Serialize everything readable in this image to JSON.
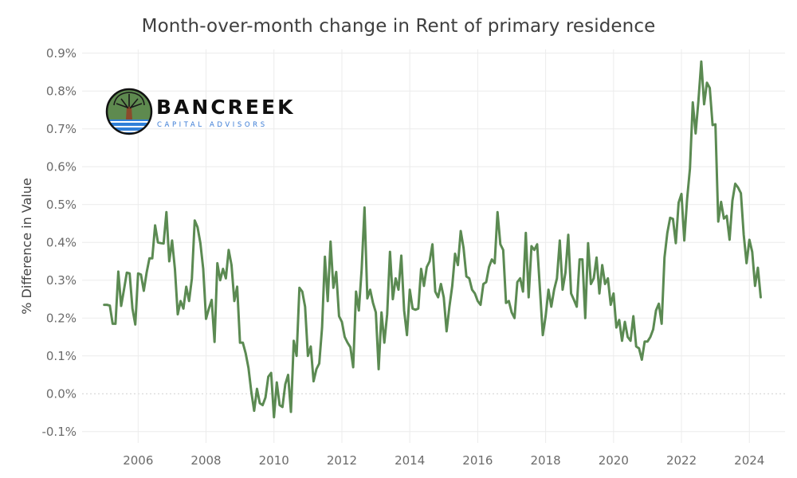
{
  "title": "Month-over-month change in Rent of primary residence",
  "logo": {
    "brand": "BANCREEK",
    "subtitle": "CAPITAL ADVISORS"
  },
  "colors": {
    "line": "#5b8a52",
    "grid": "#ececec",
    "zero_line": "#cfcfcf",
    "axis_text": "#6b6b6b"
  },
  "chart_data": {
    "type": "line",
    "title": "Month-over-month change in Rent of primary residence",
    "xlabel": "",
    "ylabel": "% Difference in Value",
    "xlim": [
      2004.35,
      2025.05
    ],
    "ylim": [
      -0.13,
      0.91
    ],
    "x_ticks": [
      2006,
      2008,
      2010,
      2012,
      2014,
      2016,
      2018,
      2020,
      2022,
      2024
    ],
    "y_ticks": [
      -0.1,
      0.0,
      0.1,
      0.2,
      0.3,
      0.4,
      0.5,
      0.6,
      0.7,
      0.8,
      0.9
    ],
    "y_tick_labels": [
      "-0.1%",
      "0.0%",
      "0.1%",
      "0.2%",
      "0.3%",
      "0.4%",
      "0.5%",
      "0.6%",
      "0.7%",
      "0.8%",
      "0.9%"
    ],
    "grid": true,
    "series": [
      {
        "x_start": 2005.0,
        "x_step": 0.083333,
        "values": [
          0.235,
          0.235,
          0.233,
          0.185,
          0.185,
          0.323,
          0.232,
          0.275,
          0.32,
          0.318,
          0.225,
          0.183,
          0.318,
          0.315,
          0.272,
          0.32,
          0.358,
          0.358,
          0.445,
          0.4,
          0.398,
          0.397,
          0.48,
          0.35,
          0.405,
          0.33,
          0.21,
          0.245,
          0.225,
          0.283,
          0.245,
          0.305,
          0.458,
          0.44,
          0.398,
          0.33,
          0.198,
          0.225,
          0.248,
          0.137,
          0.345,
          0.3,
          0.33,
          0.305,
          0.38,
          0.34,
          0.245,
          0.283,
          0.135,
          0.135,
          0.107,
          0.068,
          0.005,
          -0.045,
          0.013,
          -0.025,
          -0.03,
          -0.01,
          0.045,
          0.055,
          -0.062,
          0.03,
          -0.03,
          -0.035,
          0.025,
          0.05,
          -0.048,
          0.14,
          0.1,
          0.28,
          0.27,
          0.23,
          0.1,
          0.125,
          0.033,
          0.065,
          0.08,
          0.175,
          0.362,
          0.245,
          0.402,
          0.28,
          0.322,
          0.205,
          0.19,
          0.15,
          0.135,
          0.123,
          0.07,
          0.27,
          0.22,
          0.33,
          0.492,
          0.252,
          0.275,
          0.24,
          0.215,
          0.065,
          0.215,
          0.135,
          0.21,
          0.375,
          0.25,
          0.305,
          0.275,
          0.365,
          0.22,
          0.155,
          0.275,
          0.225,
          0.222,
          0.225,
          0.33,
          0.285,
          0.335,
          0.35,
          0.395,
          0.27,
          0.255,
          0.29,
          0.255,
          0.165,
          0.23,
          0.285,
          0.37,
          0.34,
          0.43,
          0.385,
          0.31,
          0.305,
          0.275,
          0.265,
          0.245,
          0.235,
          0.29,
          0.295,
          0.335,
          0.355,
          0.345,
          0.48,
          0.395,
          0.38,
          0.24,
          0.245,
          0.215,
          0.2,
          0.295,
          0.305,
          0.27,
          0.425,
          0.255,
          0.39,
          0.38,
          0.395,
          0.275,
          0.155,
          0.205,
          0.275,
          0.23,
          0.275,
          0.305,
          0.405,
          0.275,
          0.32,
          0.42,
          0.265,
          0.248,
          0.23,
          0.355,
          0.355,
          0.2,
          0.398,
          0.29,
          0.305,
          0.36,
          0.265,
          0.34,
          0.29,
          0.305,
          0.235,
          0.265,
          0.175,
          0.195,
          0.14,
          0.19,
          0.15,
          0.14,
          0.205,
          0.125,
          0.12,
          0.09,
          0.138,
          0.138,
          0.15,
          0.17,
          0.22,
          0.238,
          0.185,
          0.36,
          0.425,
          0.465,
          0.462,
          0.398,
          0.505,
          0.528,
          0.405,
          0.515,
          0.595,
          0.77,
          0.688,
          0.775,
          0.878,
          0.765,
          0.822,
          0.808,
          0.71,
          0.712,
          0.455,
          0.507,
          0.463,
          0.47,
          0.407,
          0.51,
          0.555,
          0.545,
          0.53,
          0.42,
          0.345,
          0.407,
          0.375,
          0.285,
          0.333,
          0.255
        ]
      }
    ]
  }
}
